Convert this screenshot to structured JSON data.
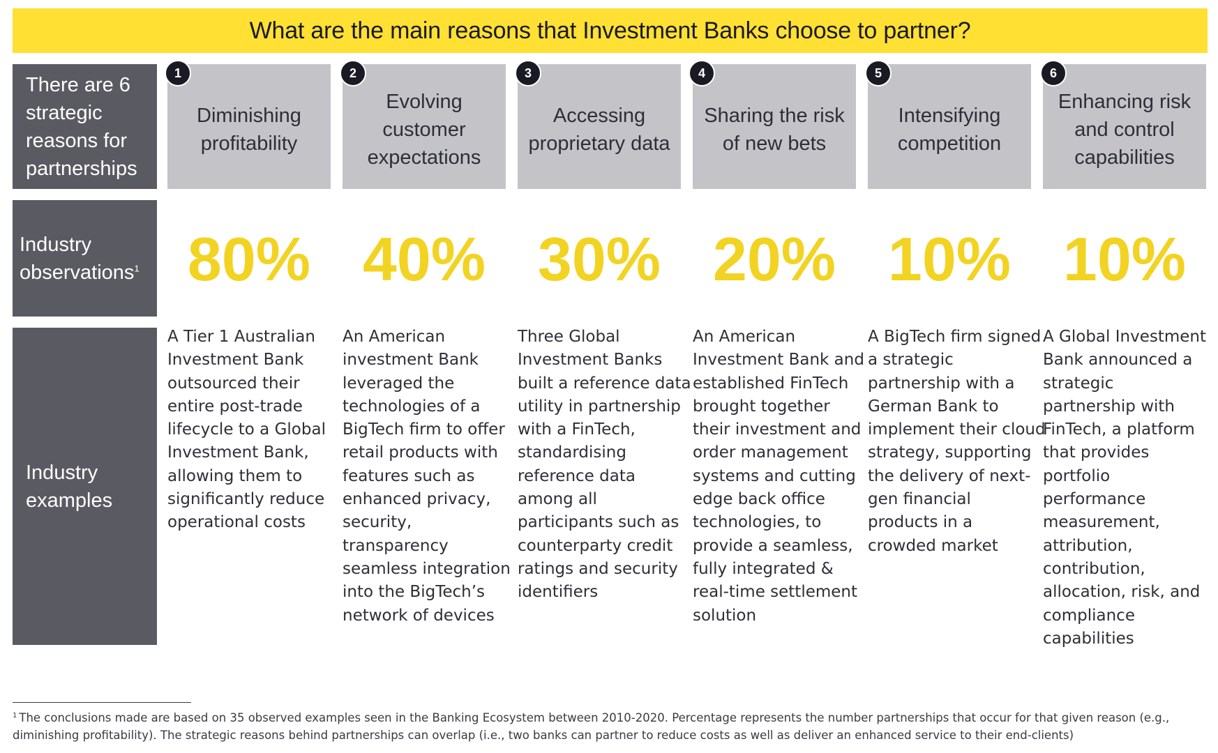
{
  "title": "What are the main reasons that Investment Banks choose to partner?",
  "row_labels": {
    "reasons": "There are 6 strategic reasons for partnerships",
    "observations": "Industry observations",
    "observations_sup": "1",
    "examples": "Industry examples"
  },
  "reasons": [
    {
      "number": "1",
      "label": "Diminishing profitability",
      "percentage": "80%",
      "example": "A Tier 1 Australian Investment Bank outsourced their entire post-trade lifecycle to a Global Investment Bank, allowing them to significantly reduce operational costs"
    },
    {
      "number": "2",
      "label": "Evolving customer expectations",
      "percentage": "40%",
      "example": "An American investment Bank leveraged the technologies of a BigTech firm to offer retail products with features such as enhanced privacy, security, transparency seamless integration into the BigTech’s network of devices"
    },
    {
      "number": "3",
      "label": "Accessing proprietary data",
      "percentage": "30%",
      "example": "Three Global Investment Banks built a reference data utility in partnership with a FinTech, standardising reference data among all participants such as counterparty credit ratings and security identifiers"
    },
    {
      "number": "4",
      "label": "Sharing the risk of new bets",
      "percentage": "20%",
      "example": "An American Investment Bank and established FinTech brought together their investment and order management systems and cutting edge back office technologies, to provide a seamless, fully integrated & real-time settlement solution"
    },
    {
      "number": "5",
      "label": "Intensifying competition",
      "percentage": "10%",
      "example": "A BigTech firm signed a strategic partnership with a German Bank to implement their cloud strategy, supporting the delivery of next-gen financial products in a crowded market"
    },
    {
      "number": "6",
      "label": "Enhancing risk and control capabilities",
      "percentage": "10%",
      "example": "A Global Investment Bank announced a strategic partnership with FinTech, a platform that provides portfolio performance measurement, attribution, contribution, allocation, risk, and compliance capabilities"
    }
  ],
  "footnote": {
    "marker": "1",
    "text": "The conclusions made are based on 35 observed examples seen in the Banking Ecosystem between 2010-2020. Percentage represents the number partnerships that occur for that given reason (e.g., diminishing profitability). The strategic reasons behind partnerships can overlap (i.e., two banks can partner to reduce costs as well as deliver an enhanced service to their end-clients)"
  },
  "colors": {
    "title_bar": "#ffe033",
    "row_label_bg": "#5a5a63",
    "reason_box_bg": "#c4c4c8",
    "percentage": "#f2d322",
    "badge": "#1a1a24"
  }
}
